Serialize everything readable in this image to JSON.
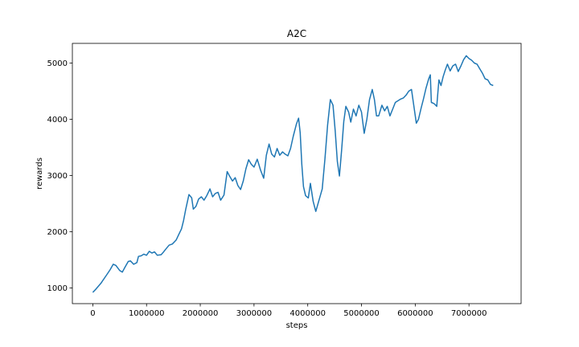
{
  "chart_data": {
    "type": "line",
    "title": "A2C",
    "xlabel": "steps",
    "ylabel": "rewards",
    "xlim": [
      -380000,
      7970000
    ],
    "ylim": [
      720,
      5350
    ],
    "xticks": [
      0,
      1000000,
      2000000,
      3000000,
      4000000,
      5000000,
      6000000,
      7000000
    ],
    "xtick_labels": [
      "0",
      "1000000",
      "2000000",
      "3000000",
      "4000000",
      "5000000",
      "6000000",
      "7000000"
    ],
    "yticks": [
      1000,
      2000,
      3000,
      4000,
      5000
    ],
    "ytick_labels": [
      "1000",
      "2000",
      "3000",
      "4000",
      "5000"
    ],
    "grid": false,
    "series": [
      {
        "color": "#1f77b4",
        "points": [
          [
            0,
            920
          ],
          [
            60000,
            980
          ],
          [
            150000,
            1080
          ],
          [
            250000,
            1220
          ],
          [
            320000,
            1320
          ],
          [
            380000,
            1420
          ],
          [
            430000,
            1400
          ],
          [
            500000,
            1310
          ],
          [
            550000,
            1280
          ],
          [
            600000,
            1370
          ],
          [
            660000,
            1470
          ],
          [
            700000,
            1480
          ],
          [
            760000,
            1420
          ],
          [
            820000,
            1450
          ],
          [
            850000,
            1560
          ],
          [
            900000,
            1570
          ],
          [
            950000,
            1600
          ],
          [
            1000000,
            1580
          ],
          [
            1050000,
            1650
          ],
          [
            1100000,
            1620
          ],
          [
            1150000,
            1640
          ],
          [
            1200000,
            1580
          ],
          [
            1270000,
            1590
          ],
          [
            1310000,
            1630
          ],
          [
            1350000,
            1680
          ],
          [
            1420000,
            1760
          ],
          [
            1480000,
            1780
          ],
          [
            1550000,
            1850
          ],
          [
            1600000,
            1950
          ],
          [
            1650000,
            2050
          ],
          [
            1690000,
            2200
          ],
          [
            1730000,
            2400
          ],
          [
            1790000,
            2660
          ],
          [
            1840000,
            2600
          ],
          [
            1870000,
            2400
          ],
          [
            1920000,
            2450
          ],
          [
            1970000,
            2580
          ],
          [
            2020000,
            2620
          ],
          [
            2070000,
            2560
          ],
          [
            2120000,
            2640
          ],
          [
            2180000,
            2760
          ],
          [
            2230000,
            2620
          ],
          [
            2280000,
            2680
          ],
          [
            2330000,
            2700
          ],
          [
            2380000,
            2560
          ],
          [
            2440000,
            2650
          ],
          [
            2500000,
            3070
          ],
          [
            2550000,
            2980
          ],
          [
            2600000,
            2900
          ],
          [
            2650000,
            2960
          ],
          [
            2700000,
            2820
          ],
          [
            2750000,
            2750
          ],
          [
            2800000,
            2900
          ],
          [
            2850000,
            3120
          ],
          [
            2900000,
            3280
          ],
          [
            2950000,
            3200
          ],
          [
            3000000,
            3150
          ],
          [
            3060000,
            3290
          ],
          [
            3120000,
            3100
          ],
          [
            3180000,
            2950
          ],
          [
            3230000,
            3360
          ],
          [
            3280000,
            3560
          ],
          [
            3330000,
            3380
          ],
          [
            3380000,
            3330
          ],
          [
            3430000,
            3480
          ],
          [
            3480000,
            3360
          ],
          [
            3530000,
            3420
          ],
          [
            3580000,
            3380
          ],
          [
            3630000,
            3350
          ],
          [
            3680000,
            3480
          ],
          [
            3730000,
            3700
          ],
          [
            3790000,
            3920
          ],
          [
            3830000,
            4020
          ],
          [
            3860000,
            3760
          ],
          [
            3890000,
            3200
          ],
          [
            3920000,
            2800
          ],
          [
            3960000,
            2640
          ],
          [
            4010000,
            2600
          ],
          [
            4050000,
            2860
          ],
          [
            4100000,
            2540
          ],
          [
            4150000,
            2360
          ],
          [
            4210000,
            2560
          ],
          [
            4270000,
            2760
          ],
          [
            4320000,
            3300
          ],
          [
            4370000,
            3900
          ],
          [
            4420000,
            4350
          ],
          [
            4470000,
            4250
          ],
          [
            4510000,
            3800
          ],
          [
            4550000,
            3250
          ],
          [
            4590000,
            2990
          ],
          [
            4630000,
            3450
          ],
          [
            4670000,
            3960
          ],
          [
            4710000,
            4230
          ],
          [
            4760000,
            4130
          ],
          [
            4800000,
            3950
          ],
          [
            4850000,
            4180
          ],
          [
            4900000,
            4060
          ],
          [
            4950000,
            4250
          ],
          [
            5000000,
            4130
          ],
          [
            5050000,
            3750
          ],
          [
            5100000,
            4000
          ],
          [
            5150000,
            4350
          ],
          [
            5200000,
            4530
          ],
          [
            5240000,
            4350
          ],
          [
            5280000,
            4060
          ],
          [
            5320000,
            4060
          ],
          [
            5380000,
            4250
          ],
          [
            5430000,
            4150
          ],
          [
            5480000,
            4230
          ],
          [
            5530000,
            4060
          ],
          [
            5580000,
            4180
          ],
          [
            5630000,
            4300
          ],
          [
            5680000,
            4330
          ],
          [
            5730000,
            4360
          ],
          [
            5780000,
            4380
          ],
          [
            5830000,
            4430
          ],
          [
            5880000,
            4500
          ],
          [
            5930000,
            4530
          ],
          [
            5980000,
            4200
          ],
          [
            6020000,
            3930
          ],
          [
            6060000,
            4000
          ],
          [
            6110000,
            4200
          ],
          [
            6150000,
            4350
          ],
          [
            6200000,
            4550
          ],
          [
            6250000,
            4720
          ],
          [
            6280000,
            4790
          ],
          [
            6300000,
            4300
          ],
          [
            6350000,
            4280
          ],
          [
            6400000,
            4230
          ],
          [
            6440000,
            4700
          ],
          [
            6480000,
            4600
          ],
          [
            6520000,
            4760
          ],
          [
            6560000,
            4880
          ],
          [
            6600000,
            4980
          ],
          [
            6650000,
            4860
          ],
          [
            6700000,
            4950
          ],
          [
            6750000,
            4980
          ],
          [
            6800000,
            4850
          ],
          [
            6850000,
            4950
          ],
          [
            6900000,
            5060
          ],
          [
            6950000,
            5130
          ],
          [
            7000000,
            5080
          ],
          [
            7050000,
            5050
          ],
          [
            7100000,
            5000
          ],
          [
            7150000,
            4980
          ],
          [
            7200000,
            4900
          ],
          [
            7250000,
            4820
          ],
          [
            7300000,
            4720
          ],
          [
            7350000,
            4700
          ],
          [
            7400000,
            4620
          ],
          [
            7450000,
            4600
          ]
        ]
      }
    ]
  }
}
